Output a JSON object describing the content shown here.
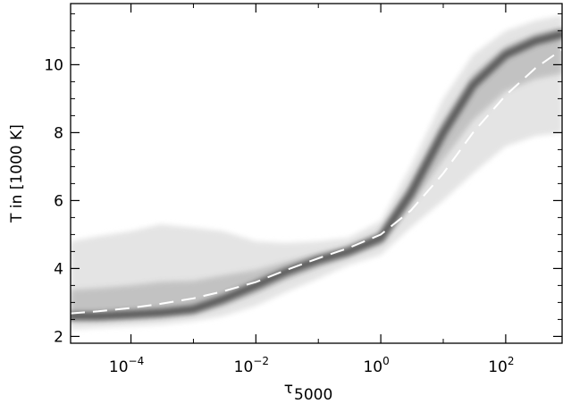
{
  "chart_data": {
    "type": "area",
    "subtype": "2D density histogram with mean curve",
    "xlabel_symbol": "τ",
    "xlabel_subscript": "5000",
    "ylabel": "T in [1000 K]",
    "xscale": "log",
    "xlim": [
      1.08e-05,
      800
    ],
    "ylim": [
      1.8,
      11.8
    ],
    "x_ticks": [
      {
        "value": 0.0001,
        "base": "10",
        "exp": "−4"
      },
      {
        "value": 0.01,
        "base": "10",
        "exp": "−2"
      },
      {
        "value": 1,
        "base": "10",
        "exp": "0"
      },
      {
        "value": 100,
        "base": "10",
        "exp": "2"
      }
    ],
    "y_ticks": [
      2,
      4,
      6,
      8,
      10
    ],
    "density_envelope": {
      "x": [
        1.08e-05,
        3e-05,
        0.0001,
        0.0003,
        0.001,
        0.003,
        0.01,
        0.03,
        0.1,
        0.3,
        1,
        3,
        10,
        30,
        100,
        300,
        800
      ],
      "y_low": [
        2.2,
        2.25,
        2.3,
        2.35,
        2.45,
        2.6,
        2.9,
        3.3,
        3.7,
        4.1,
        4.4,
        5.2,
        6.0,
        6.8,
        7.6,
        7.9,
        8.0
      ],
      "y_high": [
        4.8,
        4.95,
        5.1,
        5.3,
        5.2,
        5.1,
        4.8,
        4.75,
        4.8,
        4.9,
        5.4,
        7.0,
        9.0,
        10.3,
        11.0,
        11.3,
        11.45
      ]
    },
    "density_core": {
      "x": [
        1.08e-05,
        3e-05,
        0.0001,
        0.0003,
        0.001,
        0.003,
        0.01,
        0.03,
        0.1,
        0.3,
        1,
        3,
        10,
        30,
        100,
        300,
        800
      ],
      "y": [
        2.6,
        2.6,
        2.65,
        2.7,
        2.8,
        3.1,
        3.5,
        3.9,
        4.25,
        4.5,
        4.9,
        6.2,
        8.0,
        9.4,
        10.3,
        10.7,
        10.9
      ]
    },
    "series": [
      {
        "style": "dashed white",
        "x": [
          1.08e-05,
          3e-05,
          0.0001,
          0.0003,
          0.001,
          0.003,
          0.01,
          0.03,
          0.1,
          0.3,
          1,
          3,
          10,
          30,
          100,
          300,
          800
        ],
        "y": [
          2.68,
          2.74,
          2.84,
          2.96,
          3.12,
          3.33,
          3.6,
          3.95,
          4.3,
          4.6,
          5.0,
          5.7,
          6.8,
          8.0,
          9.1,
          9.9,
          10.45
        ]
      }
    ],
    "grid": false,
    "legend": "none",
    "colors": {
      "envelope": "#e4e4e4",
      "mid": "#bdbdbd",
      "core": "#4a4a4a",
      "mean_line": "#ffffff",
      "axes": "#000000"
    }
  }
}
